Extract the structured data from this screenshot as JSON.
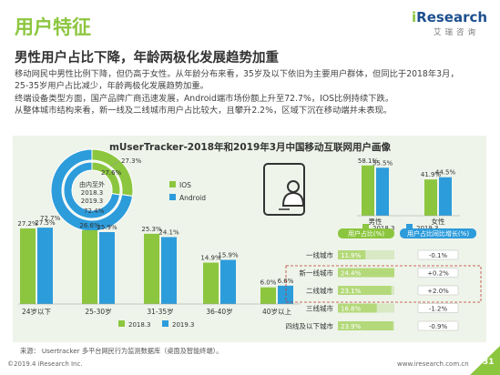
{
  "header": {
    "title": "用户特征",
    "logo_text": "iResearch",
    "logo_sub": "艾瑞咨询",
    "subtitle": "男性用户占比下降，年龄两极化发展趋势加重"
  },
  "description": [
    "移动网民中男性比例下降，但仍高于女性。从年龄分布来看，35岁及以下依旧为主要用户群体，但同比于2018年3月，",
    "25-35岁用户占比减少，年龄两极化发展趋势加重。",
    "终端设备类型方面，国产品牌广商迅速发展，Android端市场份额上升至72.7%，IOS比例持续下跌。",
    "从整体城市结构来看，新一线及二线城市用户占比较大，且攀升2.2%，区域下沉在移动端并未表现。"
  ],
  "chart_data": [
    {
      "type": "pie",
      "title": "mUserTracker-2018年和2019年3月中国移动互联网用户画像",
      "center_label": [
        "由内至外",
        "2018.3",
        "2019.3"
      ],
      "categories": [
        "IOS",
        "Android"
      ],
      "series": [
        {
          "name": "2018.3",
          "values": [
            27.6,
            72.4
          ]
        },
        {
          "name": "2019.3",
          "values": [
            27.3,
            72.7
          ]
        }
      ],
      "colors": {
        "IOS": "#8cc63f",
        "Android": "#2d9cdb"
      },
      "legend_position": "right"
    },
    {
      "type": "bar",
      "categories": [
        "男性",
        "女性"
      ],
      "series": [
        {
          "name": "2018.3",
          "values": [
            58.1,
            41.9
          ]
        },
        {
          "name": "2019.3",
          "values": [
            55.5,
            44.5
          ]
        }
      ],
      "legend_position": "bottom"
    },
    {
      "type": "bar",
      "categories": [
        "24岁以下",
        "25-30岁",
        "31-35岁",
        "36-40岁",
        "40岁以上"
      ],
      "series": [
        {
          "name": "2018.3",
          "values": [
            27.2,
            26.6,
            25.3,
            14.9,
            6.0
          ]
        },
        {
          "name": "2019.3",
          "values": [
            27.5,
            25.9,
            24.1,
            15.9,
            6.6
          ]
        }
      ],
      "legend_position": "bottom"
    },
    {
      "type": "table",
      "columns": [
        "用户占比(%)",
        "用户占比同比增长(%)"
      ],
      "rows": [
        {
          "label": "一线城市",
          "share": "11.9%",
          "growth": "-0.1%",
          "value": 11.9
        },
        {
          "label": "新一线城市",
          "share": "24.4%",
          "growth": "+0.2%",
          "value": 24.4
        },
        {
          "label": "二线城市",
          "share": "23.1%",
          "growth": "+2.0%",
          "value": 23.1
        },
        {
          "label": "三线城市",
          "share": "16.8%",
          "growth": "-1.2%",
          "value": 16.8
        },
        {
          "label": "四线及以下城市",
          "share": "23.9%",
          "growth": "-0.9%",
          "value": 23.9
        }
      ]
    }
  ],
  "colors": {
    "green": "#8cc63f",
    "blue": "#2d9cdb",
    "light_green": "#b4d97a",
    "panel": "#eef4ea"
  },
  "footer": {
    "source": "来源：  Usertracker 多平台网民行为监测数据库（桌面及智能终端）。",
    "copyright": "©2019.4 iResearch Inc.",
    "url": "www.iresearch.com.cn",
    "page": "31"
  }
}
